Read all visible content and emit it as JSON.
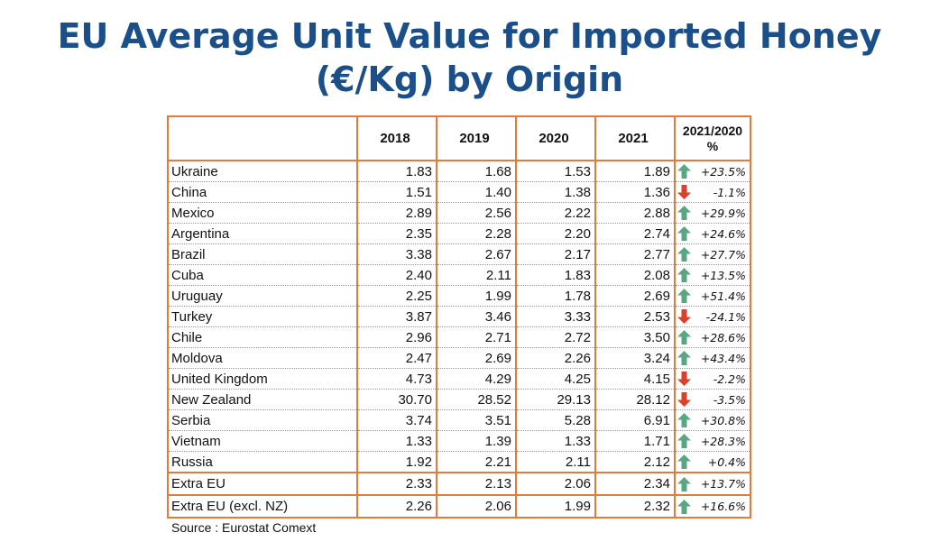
{
  "title_line1": "EU Average Unit Value for Imported Honey",
  "title_line2": "(€/Kg) by Origin",
  "columns": [
    "",
    "2018",
    "2019",
    "2020",
    "2021",
    "2021/2020 %"
  ],
  "source": "Source :  Eurostat Comext",
  "colors": {
    "title": "#1a4f8a",
    "border": "#e07b39",
    "up": "#5aa683",
    "down": "#d9412b"
  },
  "chart_data": {
    "type": "table",
    "title": "EU Average Unit Value for Imported Honey (€/Kg) by Origin",
    "columns": [
      "2018",
      "2019",
      "2020",
      "2021",
      "2021/2020 %"
    ],
    "rows": [
      {
        "country": "Ukraine",
        "values": [
          "1.83",
          "1.68",
          "1.53",
          "1.89"
        ],
        "change": "+23.5%",
        "direction": "up"
      },
      {
        "country": "China",
        "values": [
          "1.51",
          "1.40",
          "1.38",
          "1.36"
        ],
        "change": "-1.1%",
        "direction": "down"
      },
      {
        "country": "Mexico",
        "values": [
          "2.89",
          "2.56",
          "2.22",
          "2.88"
        ],
        "change": "+29.9%",
        "direction": "up"
      },
      {
        "country": "Argentina",
        "values": [
          "2.35",
          "2.28",
          "2.20",
          "2.74"
        ],
        "change": "+24.6%",
        "direction": "up"
      },
      {
        "country": "Brazil",
        "values": [
          "3.38",
          "2.67",
          "2.17",
          "2.77"
        ],
        "change": "+27.7%",
        "direction": "up"
      },
      {
        "country": "Cuba",
        "values": [
          "2.40",
          "2.11",
          "1.83",
          "2.08"
        ],
        "change": "+13.5%",
        "direction": "up"
      },
      {
        "country": "Uruguay",
        "values": [
          "2.25",
          "1.99",
          "1.78",
          "2.69"
        ],
        "change": "+51.4%",
        "direction": "up"
      },
      {
        "country": "Turkey",
        "values": [
          "3.87",
          "3.46",
          "3.33",
          "2.53"
        ],
        "change": "-24.1%",
        "direction": "down"
      },
      {
        "country": "Chile",
        "values": [
          "2.96",
          "2.71",
          "2.72",
          "3.50"
        ],
        "change": "+28.6%",
        "direction": "up"
      },
      {
        "country": "Moldova",
        "values": [
          "2.47",
          "2.69",
          "2.26",
          "3.24"
        ],
        "change": "+43.4%",
        "direction": "up"
      },
      {
        "country": "United Kingdom",
        "values": [
          "4.73",
          "4.29",
          "4.25",
          "4.15"
        ],
        "change": "-2.2%",
        "direction": "down"
      },
      {
        "country": "New Zealand",
        "values": [
          "30.70",
          "28.52",
          "29.13",
          "28.12"
        ],
        "change": "-3.5%",
        "direction": "down"
      },
      {
        "country": "Serbia",
        "values": [
          "3.74",
          "3.51",
          "5.28",
          "6.91"
        ],
        "change": "+30.8%",
        "direction": "up"
      },
      {
        "country": "Vietnam",
        "values": [
          "1.33",
          "1.39",
          "1.33",
          "1.71"
        ],
        "change": "+28.3%",
        "direction": "up"
      },
      {
        "country": "Russia",
        "values": [
          "1.92",
          "2.21",
          "2.11",
          "2.12"
        ],
        "change": "+0.4%",
        "direction": "up"
      }
    ],
    "aggregates": [
      {
        "country": "Extra EU",
        "values": [
          "2.33",
          "2.13",
          "2.06",
          "2.34"
        ],
        "change": "+13.7%",
        "direction": "up"
      },
      {
        "country": "Extra EU (excl. NZ)",
        "values": [
          "2.26",
          "2.06",
          "1.99",
          "2.32"
        ],
        "change": "+16.6%",
        "direction": "up"
      }
    ]
  }
}
